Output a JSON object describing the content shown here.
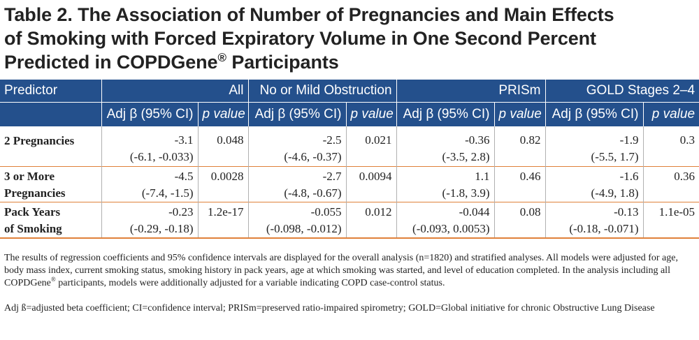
{
  "title": {
    "line1": "Table 2. The Association of Number of Pregnancies and Main Effects",
    "line2": "of Smoking with Forced Expiratory Volume in One Second Percent",
    "line3_pre": "Predicted in COPDGene",
    "line3_sup": "®",
    "line3_post": " Participants"
  },
  "header": {
    "predictor": "Predictor",
    "groups": [
      "All",
      "No or Mild Obstruction",
      "PRISm",
      "GOLD Stages 2–4"
    ],
    "beta_label": "Adj β (95% CI)",
    "p_label": "p value"
  },
  "rows": [
    {
      "label": "2 Pregnancies",
      "cells": [
        {
          "beta": "-3.1",
          "ci": "(-6.1, -0.033)",
          "p": "0.048"
        },
        {
          "beta": "-2.5",
          "ci": "(-4.6, -0.37)",
          "p": "0.021"
        },
        {
          "beta": "-0.36",
          "ci": "(-3.5, 2.8)",
          "p": "0.82"
        },
        {
          "beta": "-1.9",
          "ci": "(-5.5, 1.7)",
          "p": "0.3"
        }
      ]
    },
    {
      "label1": "3 or More",
      "label2": "Pregnancies",
      "cells": [
        {
          "beta": "-4.5",
          "ci": "(-7.4, -1.5)",
          "p": "0.0028"
        },
        {
          "beta": "-2.7",
          "ci": "(-4.8, -0.67)",
          "p": "0.0094"
        },
        {
          "beta": "1.1",
          "ci": "(-1.8, 3.9)",
          "p": "0.46"
        },
        {
          "beta": "-1.6",
          "ci": "(-4.9, 1.8)",
          "p": "0.36"
        }
      ]
    },
    {
      "label1": "Pack Years",
      "label2": "of Smoking",
      "cells": [
        {
          "beta": "-0.23",
          "ci": "(-0.29, -0.18)",
          "p": "1.2e-17"
        },
        {
          "beta": "-0.055",
          "ci": "(-0.098, -0.012)",
          "p": "0.012"
        },
        {
          "beta": "-0.044",
          "ci": "(-0.093, 0.0053)",
          "p": "0.08"
        },
        {
          "beta": "-0.13",
          "ci": "(-0.18, -0.071)",
          "p": "1.1e-05"
        }
      ]
    }
  ],
  "notes": {
    "para1_a": "The results of regression coefficients and 95% confidence intervals are displayed for the overall analysis (n=1820) and stratified analyses. All models were adjusted for age, body mass index, current smoking status, smoking history in pack years, age at which smoking was started, and level of education completed.  In the analysis including all COPDGene",
    "para1_sup": "®",
    "para1_b": " participants, models were additionally adjusted for a variable indicating COPD case-control status.",
    "para2": "Adj ß=adjusted beta coefficient; CI=confidence interval; PRISm=preserved ratio-impaired spirometry; GOLD=Global initiative for chronic Obstructive Lung Disease"
  }
}
